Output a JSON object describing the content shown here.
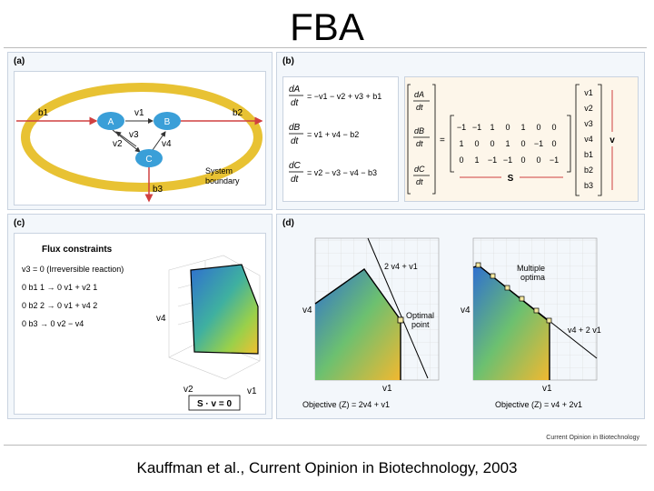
{
  "slide": {
    "title": "FBA",
    "caption": "Kauffman et al., Current Opinion in Biotechnology, 2003"
  },
  "figure": {
    "journal_credit": "Current Opinion in Biotechnology",
    "panel_a": {
      "label": "(a)",
      "nodes": [
        "A",
        "B",
        "C"
      ],
      "fluxes": [
        "b1",
        "b2",
        "b3",
        "v1",
        "v2",
        "v3",
        "v4"
      ],
      "boundary_label_1": "System",
      "boundary_label_2": "boundary"
    },
    "panel_b": {
      "label": "(b)",
      "equations": [
        {
          "lhs_num": "dA",
          "lhs_den": "dt",
          "rhs": "= −v1 − v2 + v3 + b1"
        },
        {
          "lhs_num": "dB",
          "lhs_den": "dt",
          "rhs": "= v1 + v4 − b2"
        },
        {
          "lhs_num": "dC",
          "lhs_den": "dt",
          "rhs": "= v2 − v3 − v4 − b3"
        }
      ],
      "matrix_rows": [
        [
          "−1",
          "−1",
          "1",
          "0",
          "1",
          "0",
          "0"
        ],
        [
          "1",
          "0",
          "0",
          "1",
          "0",
          "−1",
          "0"
        ],
        [
          "0",
          "1",
          "−1",
          "−1",
          "0",
          "0",
          "−1"
        ]
      ],
      "vector": [
        "v1",
        "v2",
        "v3",
        "v4",
        "b1",
        "b2",
        "b3"
      ],
      "matrix_label": "S",
      "vector_label": "v",
      "deriv": [
        {
          "num": "dA",
          "den": "dt"
        },
        {
          "num": "dB",
          "den": "dt"
        },
        {
          "num": "dC",
          "den": "dt"
        }
      ]
    },
    "panel_c": {
      "label": "(c)",
      "heading": "Flux constraints",
      "constraints": [
        "v3 = 0 (Irreversible reaction)",
        "0 b1 1 → 0 v1 + v2 1",
        "0 b2 2 → 0 v1 + v4 2",
        "0 b3 → 0 v2 − v4"
      ],
      "axis_v4": "v4",
      "axis_v2": "v2",
      "axis_v1": "v1",
      "equation_box": "S · v = 0"
    },
    "panel_d": {
      "label": "(d)",
      "left": {
        "line_label": "2 v4 + v1",
        "point_label_1": "Optimal",
        "point_label_2": "point",
        "xlabel": "v1",
        "ylabel": "v4",
        "objective": "Objective (Z) = 2v4 + v1"
      },
      "right": {
        "line_label": "v4 + 2 v1",
        "optima_label_1": "Multiple",
        "optima_label_2": "optima",
        "xlabel": "v1",
        "ylabel": "v4",
        "objective": "Objective (Z) = v4 + 2v1"
      }
    }
  }
}
